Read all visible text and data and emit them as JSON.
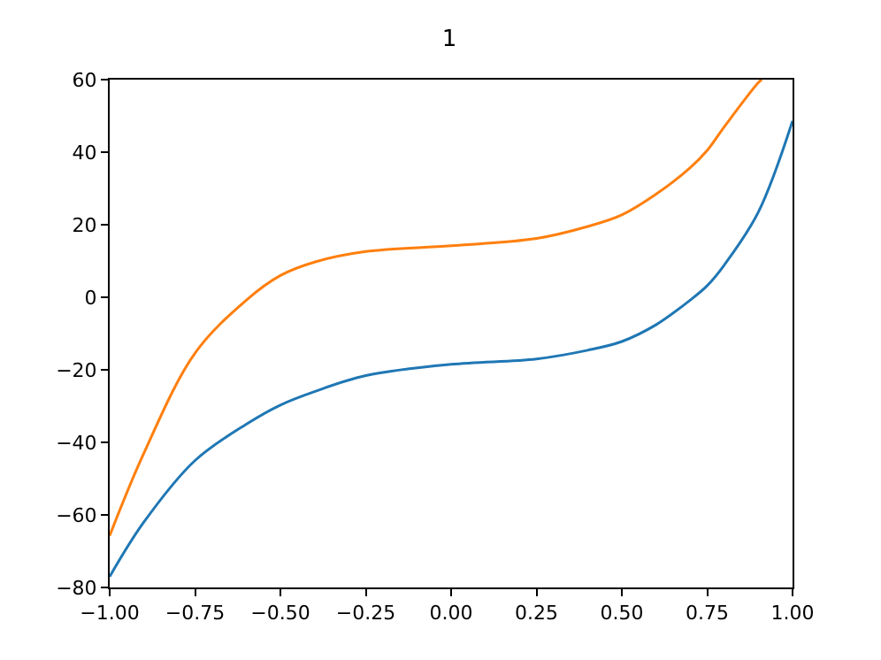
{
  "chart_data": {
    "type": "line",
    "title": "1",
    "x": [
      -1.0,
      -0.9,
      -0.75,
      -0.6,
      -0.5,
      -0.4,
      -0.25,
      0.0,
      0.25,
      0.4,
      0.5,
      0.6,
      0.7,
      0.75,
      0.8,
      0.9,
      1.0
    ],
    "series": [
      {
        "color": "#1f77b4",
        "values": [
          -77,
          -62,
          -45,
          -35,
          -29.7,
          -26,
          -21.6,
          -18.5,
          -17,
          -14.6,
          -12.2,
          -7.6,
          -0.8,
          3.2,
          8.9,
          23.5,
          48.6
        ]
      },
      {
        "color": "#ff7f0e",
        "x": [
          -1.0,
          -0.9,
          -0.75,
          -0.6,
          -0.5,
          -0.4,
          -0.25,
          0.0,
          0.25,
          0.4,
          0.5,
          0.6,
          0.7,
          0.75,
          0.8,
          0.9,
          0.91
        ],
        "values": [
          -65.7,
          -43,
          -15.4,
          -0.8,
          6,
          9.7,
          12.6,
          14.2,
          16.2,
          19.5,
          22.7,
          28.4,
          35.7,
          40.5,
          47,
          59.2,
          60
        ]
      }
    ],
    "xlim": [
      -1.0,
      1.0
    ],
    "xticks": [
      {
        "value": -1,
        "label": "−1.00"
      },
      {
        "value": -0.75,
        "label": "−0.75"
      },
      {
        "value": -0.5,
        "label": "−0.50"
      },
      {
        "value": -0.25,
        "label": "−0.25"
      },
      {
        "value": 0,
        "label": "0.00"
      },
      {
        "value": 0.25,
        "label": "0.25"
      },
      {
        "value": 0.5,
        "label": "0.50"
      },
      {
        "value": 0.75,
        "label": "0.75"
      },
      {
        "value": 1,
        "label": "1.00"
      }
    ],
    "ylim": [
      -80,
      60
    ],
    "yticks": [
      {
        "value": -80,
        "label": "−80"
      },
      {
        "value": -60,
        "label": "−60"
      },
      {
        "value": -40,
        "label": "−40"
      },
      {
        "value": -20,
        "label": "−20"
      },
      0,
      20,
      40,
      60
    ],
    "marker": "none",
    "line_style": "solid"
  }
}
